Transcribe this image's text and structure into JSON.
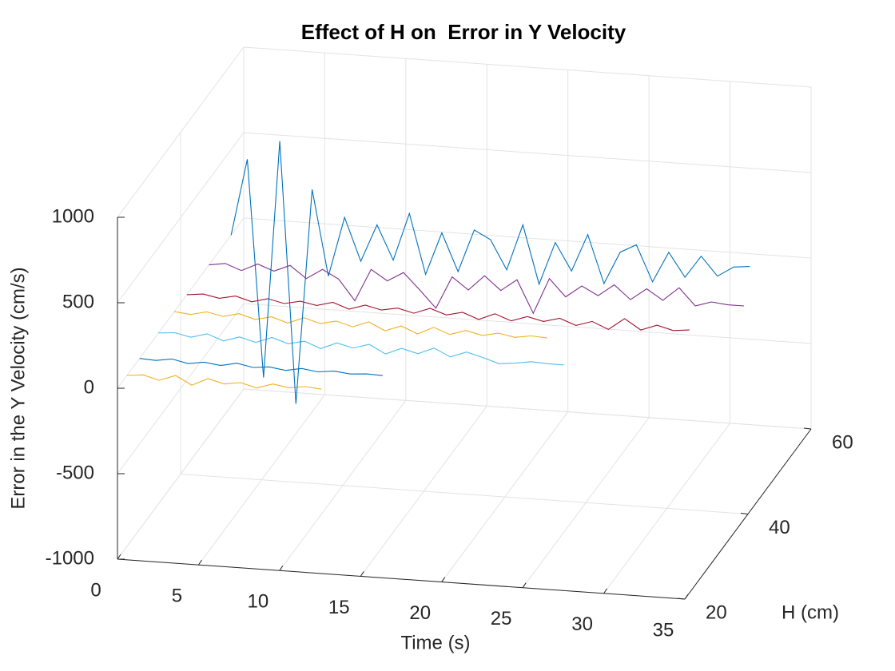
{
  "chart_data": {
    "type": "line3d",
    "title": "Effect of H on  Error in Y Velocity",
    "xlabel": "Time (s)",
    "ylabel": "H (cm)",
    "zlabel": "Error in the Y Velocity (cm/s)",
    "xlim": [
      0,
      35
    ],
    "ylim": [
      20,
      60
    ],
    "zlim": [
      -1000,
      1000
    ],
    "xticks": [
      0,
      5,
      10,
      15,
      20,
      25,
      30,
      35
    ],
    "yticks": [
      20,
      40,
      60
    ],
    "zticks": [
      -1000,
      -500,
      0,
      500,
      1000
    ],
    "grid": true,
    "x": [
      0,
      1,
      2,
      3,
      4,
      5,
      6,
      7,
      8,
      9,
      10,
      11,
      12,
      13,
      14,
      15,
      16,
      17,
      18,
      19,
      20,
      21,
      22,
      23,
      24,
      25,
      26,
      27,
      28,
      29,
      30,
      31,
      32,
      33
    ],
    "series": [
      {
        "h": 23,
        "color": "#EDB120",
        "values": [
          0,
          10,
          -15,
          20,
          -30,
          15,
          -10,
          5,
          -20,
          10,
          -5,
          8,
          0,
          null,
          null,
          null,
          null,
          null,
          null,
          null,
          null,
          null,
          null,
          null,
          null,
          null,
          null,
          null,
          null,
          null,
          null,
          null,
          null,
          null
        ]
      },
      {
        "h": 27,
        "color": "#0072BD",
        "values": [
          0,
          -5,
          10,
          -10,
          5,
          -8,
          12,
          -6,
          4,
          -10,
          8,
          -5,
          6,
          -4,
          3,
          0,
          null,
          null,
          null,
          null,
          null,
          null,
          null,
          null,
          null,
          null,
          null,
          null,
          null,
          null,
          null,
          null,
          null,
          null
        ]
      },
      {
        "h": 33,
        "color": "#4DBEEE",
        "values": [
          0,
          8,
          -12,
          15,
          -20,
          10,
          -15,
          20,
          -10,
          12,
          -25,
          15,
          -8,
          20,
          -30,
          10,
          -15,
          25,
          -20,
          15,
          -10,
          -40,
          -30,
          -15,
          -20,
          -20,
          null,
          null,
          null,
          null,
          null,
          null,
          null,
          null
        ]
      },
      {
        "h": 38,
        "color": "#EDB120",
        "values": [
          0,
          -10,
          12,
          -8,
          15,
          -12,
          10,
          -20,
          18,
          -10,
          12,
          -15,
          20,
          -25,
          10,
          -30,
          15,
          -20,
          10,
          -12,
          8,
          -10,
          5,
          0,
          null,
          null,
          null,
          null,
          null,
          null,
          null,
          null,
          null,
          null
        ]
      },
      {
        "h": 42,
        "color": "#A2142F",
        "values": [
          0,
          10,
          -8,
          12,
          -15,
          10,
          -12,
          8,
          -10,
          15,
          -18,
          12,
          -10,
          8,
          -15,
          20,
          -12,
          10,
          -25,
          15,
          -20,
          12,
          -10,
          15,
          -20,
          10,
          -30,
          40,
          -20,
          15,
          -10,
          0,
          null,
          null
        ]
      },
      {
        "h": 49,
        "color": "#7E2F8E",
        "values": [
          0,
          15,
          -20,
          25,
          -10,
          30,
          -40,
          20,
          -30,
          -150,
          40,
          -20,
          35,
          -60,
          -160,
          30,
          -40,
          50,
          -30,
          40,
          -150,
          60,
          -40,
          30,
          -20,
          50,
          -30,
          40,
          -20,
          60,
          -40,
          -10,
          -20,
          -20
        ]
      },
      {
        "h": 56,
        "color": "#0072BD",
        "values": [
          0,
          450,
          -820,
          570,
          -960,
          300,
          -200,
          150,
          -100,
          120,
          -80,
          200,
          -150,
          100,
          -120,
          130,
          80,
          -90,
          180,
          -160,
          90,
          -70,
          150,
          -130,
          60,
          110,
          -100,
          80,
          -60,
          70,
          -40,
          20,
          30,
          null
        ]
      }
    ]
  }
}
